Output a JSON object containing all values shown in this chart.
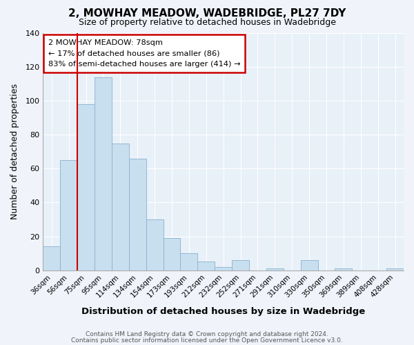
{
  "title": "2, MOWHAY MEADOW, WADEBRIDGE, PL27 7DY",
  "subtitle": "Size of property relative to detached houses in Wadebridge",
  "xlabel": "Distribution of detached houses by size in Wadebridge",
  "ylabel": "Number of detached properties",
  "bar_color": "#c8dff0",
  "bar_edge_color": "#8ab0cc",
  "bar_labels": [
    "36sqm",
    "56sqm",
    "75sqm",
    "95sqm",
    "114sqm",
    "134sqm",
    "154sqm",
    "173sqm",
    "193sqm",
    "212sqm",
    "232sqm",
    "252sqm",
    "271sqm",
    "291sqm",
    "310sqm",
    "330sqm",
    "350sqm",
    "369sqm",
    "389sqm",
    "408sqm",
    "428sqm"
  ],
  "bar_heights": [
    14,
    65,
    98,
    114,
    75,
    66,
    30,
    19,
    10,
    5,
    2,
    6,
    0,
    1,
    0,
    6,
    0,
    1,
    0,
    0,
    1
  ],
  "ylim": [
    0,
    140
  ],
  "yticks": [
    0,
    20,
    40,
    60,
    80,
    100,
    120,
    140
  ],
  "red_line_bar_index": 2,
  "annotation_title": "2 MOWHAY MEADOW: 78sqm",
  "annotation_line1": "← 17% of detached houses are smaller (86)",
  "annotation_line2": "83% of semi-detached houses are larger (414) →",
  "footer1": "Contains HM Land Registry data © Crown copyright and database right 2024.",
  "footer2": "Contains public sector information licensed under the Open Government Licence v3.0.",
  "background_color": "#f0f4fa",
  "plot_bg_color": "#e8f0f8",
  "grid_color": "#ffffff",
  "annotation_box_color": "#ffffff",
  "annotation_box_edge": "#cc0000",
  "red_line_color": "#cc0000"
}
